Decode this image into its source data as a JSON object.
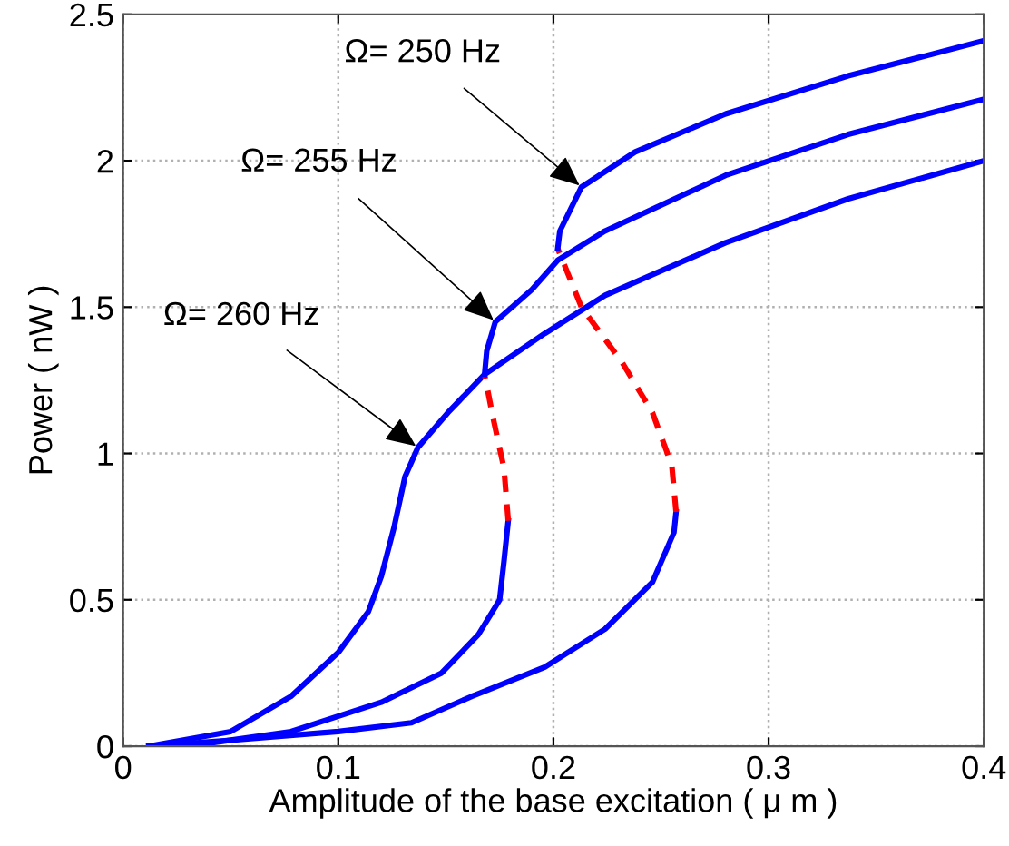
{
  "chart_data": {
    "type": "line",
    "xlabel": "Amplitude of the base excitation ( μ m )",
    "ylabel": "Power ( nW )",
    "xlim": [
      0,
      0.4
    ],
    "xticks": [
      0,
      0.1,
      0.2,
      0.3,
      0.4
    ],
    "ylim": [
      0,
      2.5
    ],
    "yticks": [
      0,
      0.5,
      1,
      1.5,
      2,
      2.5
    ],
    "grid": true,
    "marker": "none",
    "series": [
      {
        "color": "#0000ff",
        "line_style": "solid",
        "x": [
          0.012,
          0.05,
          0.078,
          0.1,
          0.114,
          0.12,
          0.126,
          0.131,
          0.137,
          0.151,
          0.168,
          0.196,
          0.224,
          0.28,
          0.337,
          0.4
        ],
        "values": [
          0,
          0.05,
          0.17,
          0.32,
          0.46,
          0.58,
          0.75,
          0.92,
          1.02,
          1.14,
          1.27,
          1.41,
          1.54,
          1.72,
          1.87,
          2.0
        ]
      },
      {
        "color": "#0000ff",
        "line_style": "solid",
        "x": [
          0.012,
          0.04,
          0.078,
          0.12,
          0.148,
          0.165,
          0.175,
          0.177,
          0.179
        ],
        "values": [
          0,
          0.01,
          0.05,
          0.15,
          0.25,
          0.38,
          0.5,
          0.63,
          0.77
        ]
      },
      {
        "color": "#ff0000",
        "line_style": "dashed",
        "x": [
          0.179,
          0.177,
          0.172,
          0.168
        ],
        "values": [
          0.77,
          0.95,
          1.12,
          1.27
        ]
      },
      {
        "color": "#0000ff",
        "line_style": "solid",
        "x": [
          0.168,
          0.169,
          0.173,
          0.19,
          0.202,
          0.224,
          0.28,
          0.337,
          0.4
        ],
        "values": [
          1.27,
          1.35,
          1.45,
          1.56,
          1.66,
          1.76,
          1.95,
          2.09,
          2.21
        ]
      },
      {
        "color": "#0000ff",
        "line_style": "solid",
        "x": [
          0.012,
          0.05,
          0.1,
          0.134,
          0.162,
          0.196,
          0.224,
          0.246,
          0.256,
          0.257
        ],
        "values": [
          0,
          0.02,
          0.05,
          0.08,
          0.17,
          0.27,
          0.4,
          0.56,
          0.73,
          0.8
        ]
      },
      {
        "color": "#ff0000",
        "line_style": "dashed",
        "x": [
          0.257,
          0.255,
          0.246,
          0.232,
          0.213,
          0.202
        ],
        "values": [
          0.8,
          0.96,
          1.14,
          1.31,
          1.5,
          1.7
        ]
      },
      {
        "color": "#0000ff",
        "line_style": "solid",
        "x": [
          0.202,
          0.203,
          0.213,
          0.238,
          0.28,
          0.337,
          0.4
        ],
        "values": [
          1.7,
          1.76,
          1.91,
          2.03,
          2.16,
          2.29,
          2.41
        ]
      }
    ],
    "annotations": [
      {
        "text": "Ω= 250 Hz",
        "x": 0.213,
        "y": 1.91
      },
      {
        "text": "Ω= 255 Hz",
        "x": 0.173,
        "y": 1.45
      },
      {
        "text": "Ω= 260 Hz",
        "x": 0.137,
        "y": 1.02
      }
    ]
  }
}
